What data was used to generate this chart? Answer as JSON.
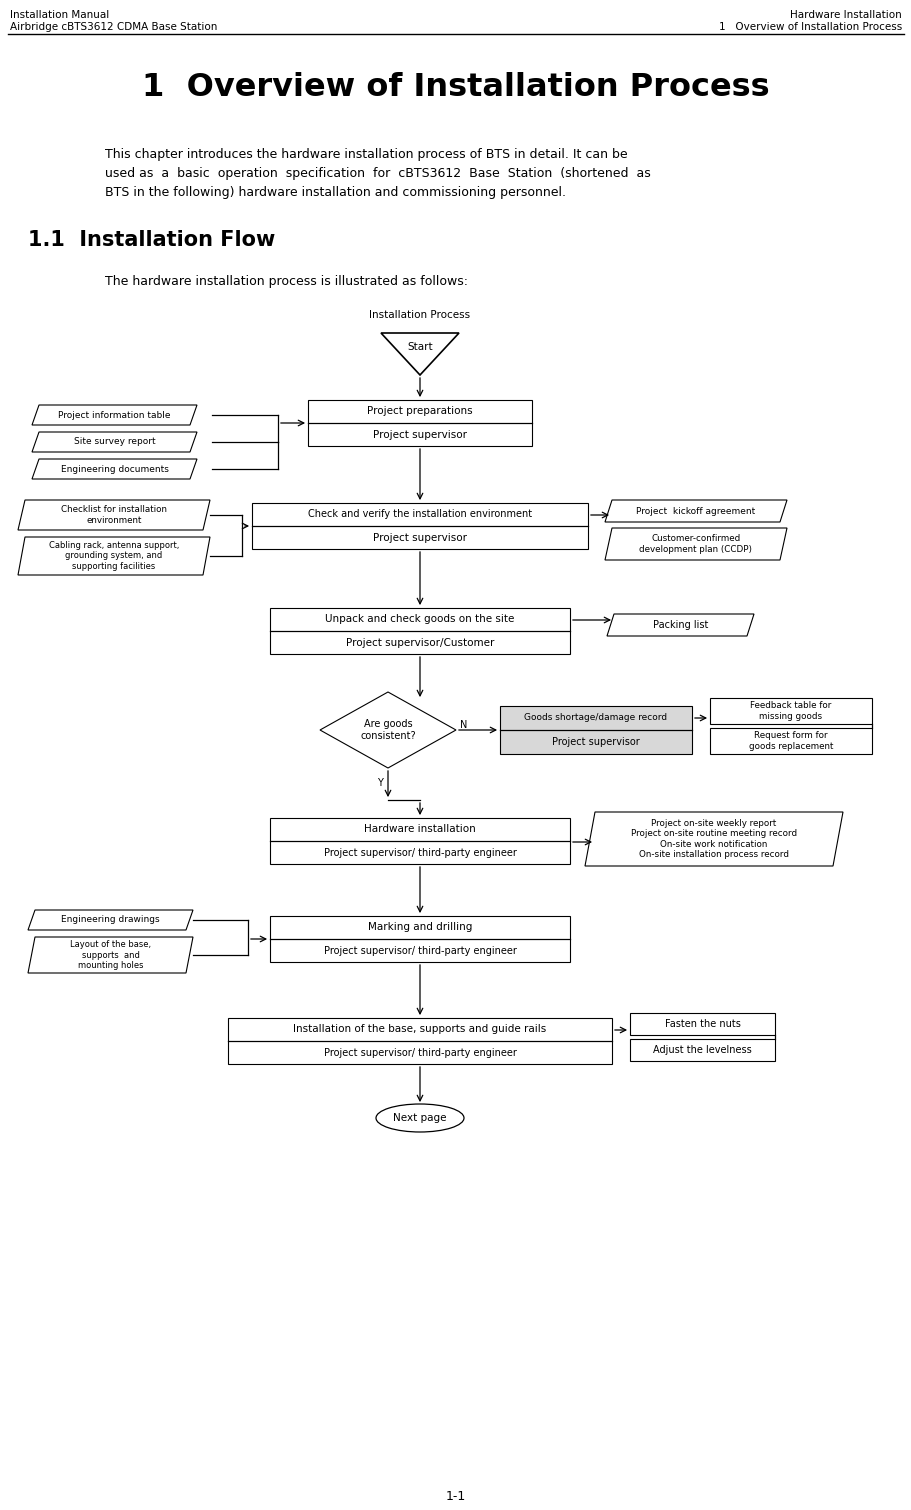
{
  "header_left_line1": "Installation Manual",
  "header_left_line2": "Airbridge cBTS3612 CDMA Base Station",
  "header_right_line1": "Hardware Installation",
  "header_right_line2": "1   Overview of Installation Process",
  "title": "1  Overview of Installation Process",
  "section_heading": "1.1  Installation Flow",
  "flow_intro": "The hardware installation process is illustrated as follows:",
  "diagram_title": "Installation Process",
  "footer": "1-1",
  "bg_color": "#ffffff"
}
